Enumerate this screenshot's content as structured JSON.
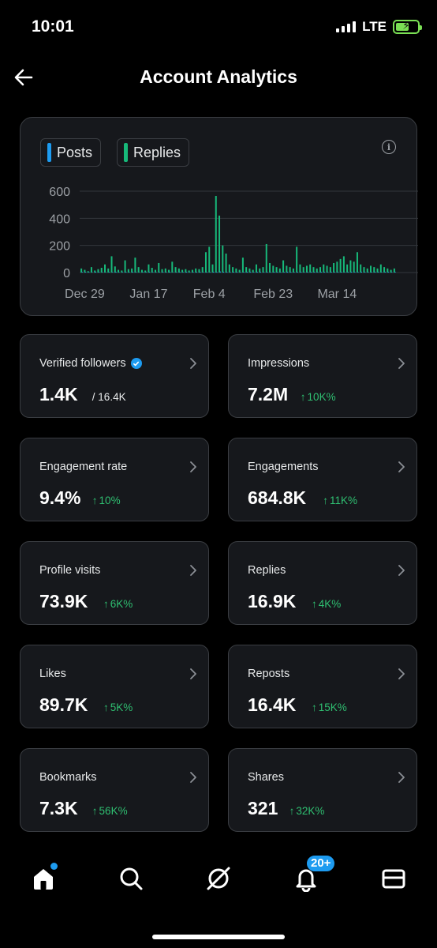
{
  "status_bar": {
    "time": "10:01",
    "network": "LTE",
    "battery_level": 0.6
  },
  "header": {
    "title": "Account Analytics",
    "back_icon": "arrow-left-icon"
  },
  "chart": {
    "legend": [
      {
        "label": "Posts",
        "color": "#1d9bf0"
      },
      {
        "label": "Replies",
        "color": "#17b97a"
      }
    ],
    "info_icon": "info-icon"
  },
  "chart_data": {
    "type": "bar",
    "title": "",
    "xlabel": "",
    "ylabel": "",
    "ylim": [
      0,
      600
    ],
    "y_ticks": [
      0,
      200,
      400,
      600
    ],
    "x_tick_labels": [
      "Dec 29",
      "Jan 17",
      "Feb 4",
      "Feb 23",
      "Mar 14"
    ],
    "x_tick_positions": [
      1,
      20,
      38,
      57,
      76
    ],
    "grid": true,
    "legend_position": "top-left",
    "series": [
      {
        "name": "Posts",
        "values": [
          5,
          5,
          4,
          3,
          6,
          5,
          4,
          3,
          5,
          4,
          6,
          3,
          4,
          5,
          4,
          6,
          4,
          3,
          5,
          4,
          5,
          4,
          3,
          4,
          5,
          4,
          6,
          3,
          4,
          5,
          4,
          5,
          3,
          4,
          5,
          6,
          4,
          5,
          4,
          6,
          5,
          8,
          6,
          5,
          4,
          6,
          5,
          4,
          5,
          6,
          5,
          4,
          6,
          5,
          4,
          5,
          4,
          6,
          5,
          4,
          5,
          6,
          5,
          4,
          5,
          6,
          4,
          5,
          6,
          5,
          4,
          6,
          5,
          4,
          6,
          5,
          5,
          6,
          4,
          5,
          6,
          5,
          4,
          6,
          5,
          4,
          5,
          6,
          5,
          4,
          6,
          5,
          4,
          5
        ]
      },
      {
        "name": "Replies",
        "values": [
          30,
          20,
          10,
          40,
          15,
          25,
          35,
          60,
          30,
          120,
          45,
          20,
          15,
          90,
          25,
          30,
          110,
          40,
          20,
          15,
          60,
          35,
          20,
          70,
          25,
          30,
          20,
          80,
          40,
          30,
          20,
          25,
          15,
          20,
          30,
          25,
          40,
          150,
          190,
          60,
          565,
          420,
          200,
          140,
          60,
          40,
          30,
          20,
          110,
          40,
          30,
          20,
          60,
          30,
          40,
          210,
          70,
          50,
          40,
          30,
          90,
          50,
          40,
          30,
          190,
          60,
          40,
          50,
          60,
          40,
          30,
          40,
          60,
          50,
          40,
          70,
          80,
          100,
          120,
          60,
          90,
          80,
          150,
          60,
          40,
          30,
          50,
          40,
          30,
          60,
          40,
          30,
          20,
          30
        ]
      }
    ]
  },
  "metrics": [
    {
      "label": "Verified followers",
      "value": "1.4K",
      "sub": "/ 16.4K",
      "sub_type": "neutral",
      "verified": true
    },
    {
      "label": "Impressions",
      "value": "7.2M",
      "sub": "10K%",
      "sub_type": "up"
    },
    {
      "label": "Engagement rate",
      "value": "9.4%",
      "sub": "10%",
      "sub_type": "up"
    },
    {
      "label": "Engagements",
      "value": "684.8K",
      "sub": "11K%",
      "sub_type": "up"
    },
    {
      "label": "Profile visits",
      "value": "73.9K",
      "sub": "6K%",
      "sub_type": "up"
    },
    {
      "label": "Replies",
      "value": "16.9K",
      "sub": "4K%",
      "sub_type": "up"
    },
    {
      "label": "Likes",
      "value": "89.7K",
      "sub": "5K%",
      "sub_type": "up"
    },
    {
      "label": "Reposts",
      "value": "16.4K",
      "sub": "15K%",
      "sub_type": "up"
    },
    {
      "label": "Bookmarks",
      "value": "7.3K",
      "sub": "56K%",
      "sub_type": "up"
    },
    {
      "label": "Shares",
      "value": "321",
      "sub": "32K%",
      "sub_type": "up"
    }
  ],
  "bottom_nav": {
    "items": [
      "home-icon",
      "search-icon",
      "grok-icon",
      "notifications-icon",
      "messages-icon"
    ],
    "notification_badge": "20+",
    "active": "home"
  },
  "colors": {
    "accent": "#1d9bf0",
    "positive": "#2fbf71",
    "card_bg": "#16181c",
    "border": "#3a3d42"
  }
}
